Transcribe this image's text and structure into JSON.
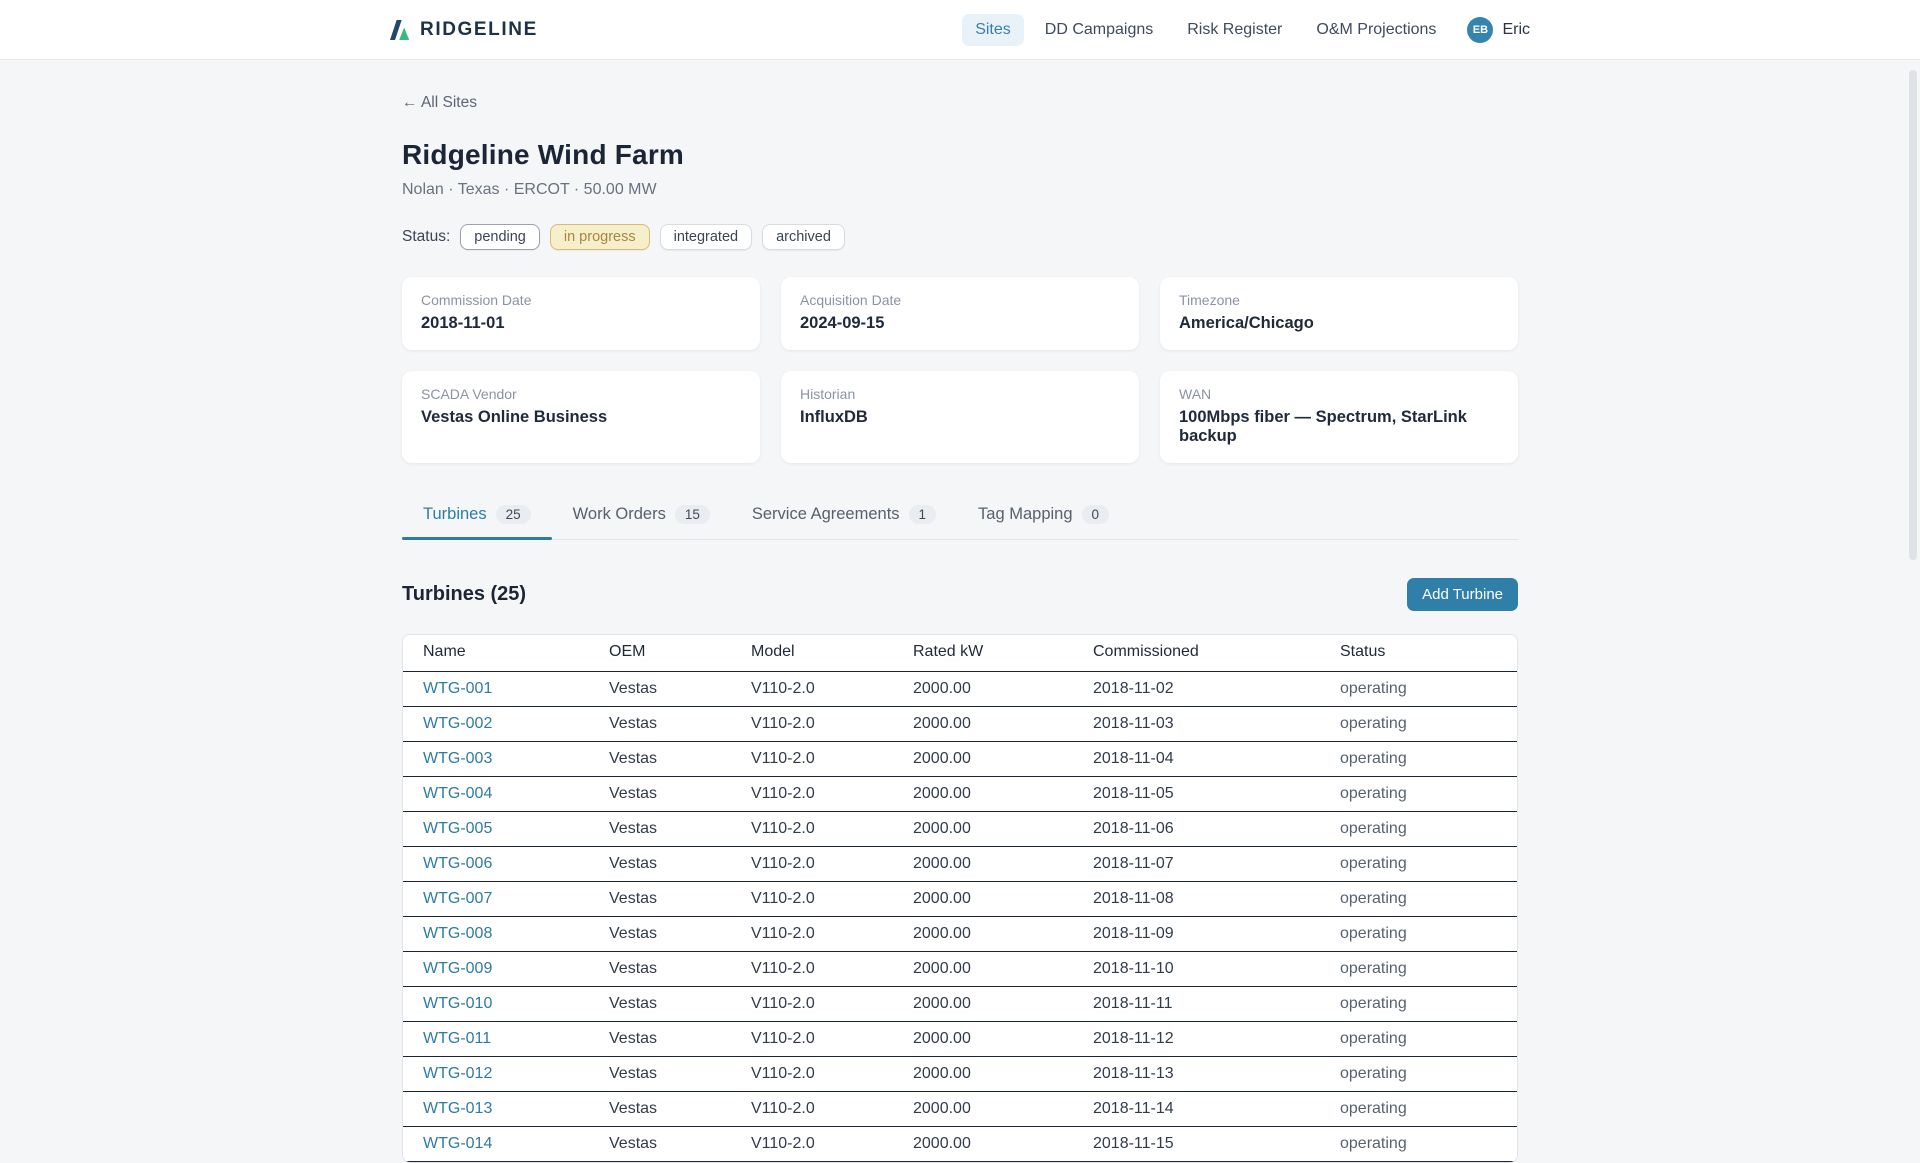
{
  "colors": {
    "accent": "#2f7fa8",
    "brand_navy": "#1e3147",
    "brand_green": "#3cb87a",
    "selected_status_bg": "#f7eecb",
    "selected_status_text": "#a5873e",
    "link": "#2d7ba4"
  },
  "brand": {
    "name": "RIDGELINE"
  },
  "nav": {
    "items": [
      {
        "label": "Sites",
        "active": true
      },
      {
        "label": "DD Campaigns",
        "active": false
      },
      {
        "label": "Risk Register",
        "active": false
      },
      {
        "label": "O&M Projections",
        "active": false
      }
    ],
    "user": {
      "initials": "EB",
      "name": "Eric"
    }
  },
  "page": {
    "back_link": "← All Sites",
    "title": "Ridgeline Wind Farm",
    "subtitle": "Nolan · Texas · ERCOT · 50.00 MW",
    "status": {
      "label": "Status:",
      "options": [
        {
          "label": "pending",
          "selected": false
        },
        {
          "label": "in progress",
          "selected": true
        },
        {
          "label": "integrated",
          "selected": false
        },
        {
          "label": "archived",
          "selected": false
        }
      ]
    },
    "info_cards": [
      {
        "label": "Commission Date",
        "value": "2018-11-01"
      },
      {
        "label": "Acquisition Date",
        "value": "2024-09-15"
      },
      {
        "label": "Timezone",
        "value": "America/Chicago"
      },
      {
        "label": "SCADA Vendor",
        "value": "Vestas Online Business"
      },
      {
        "label": "Historian",
        "value": "InfluxDB"
      },
      {
        "label": "WAN",
        "value": "100Mbps fiber — Spectrum, StarLink backup"
      }
    ],
    "tabs": [
      {
        "label": "Turbines",
        "count": "25",
        "active": true
      },
      {
        "label": "Work Orders",
        "count": "15",
        "active": false
      },
      {
        "label": "Service Agreements",
        "count": "1",
        "active": false
      },
      {
        "label": "Tag Mapping",
        "count": "0",
        "active": false
      }
    ],
    "section": {
      "title": "Turbines (25)",
      "add_button": "Add Turbine"
    },
    "table": {
      "columns": [
        "Name",
        "OEM",
        "Model",
        "Rated kW",
        "Commissioned",
        "Status"
      ],
      "rows": [
        {
          "name": "WTG-001",
          "oem": "Vestas",
          "model": "V110-2.0",
          "rated_kw": "2000.00",
          "commissioned": "2018-11-02",
          "status": "operating"
        },
        {
          "name": "WTG-002",
          "oem": "Vestas",
          "model": "V110-2.0",
          "rated_kw": "2000.00",
          "commissioned": "2018-11-03",
          "status": "operating"
        },
        {
          "name": "WTG-003",
          "oem": "Vestas",
          "model": "V110-2.0",
          "rated_kw": "2000.00",
          "commissioned": "2018-11-04",
          "status": "operating"
        },
        {
          "name": "WTG-004",
          "oem": "Vestas",
          "model": "V110-2.0",
          "rated_kw": "2000.00",
          "commissioned": "2018-11-05",
          "status": "operating"
        },
        {
          "name": "WTG-005",
          "oem": "Vestas",
          "model": "V110-2.0",
          "rated_kw": "2000.00",
          "commissioned": "2018-11-06",
          "status": "operating"
        },
        {
          "name": "WTG-006",
          "oem": "Vestas",
          "model": "V110-2.0",
          "rated_kw": "2000.00",
          "commissioned": "2018-11-07",
          "status": "operating"
        },
        {
          "name": "WTG-007",
          "oem": "Vestas",
          "model": "V110-2.0",
          "rated_kw": "2000.00",
          "commissioned": "2018-11-08",
          "status": "operating"
        },
        {
          "name": "WTG-008",
          "oem": "Vestas",
          "model": "V110-2.0",
          "rated_kw": "2000.00",
          "commissioned": "2018-11-09",
          "status": "operating"
        },
        {
          "name": "WTG-009",
          "oem": "Vestas",
          "model": "V110-2.0",
          "rated_kw": "2000.00",
          "commissioned": "2018-11-10",
          "status": "operating"
        },
        {
          "name": "WTG-010",
          "oem": "Vestas",
          "model": "V110-2.0",
          "rated_kw": "2000.00",
          "commissioned": "2018-11-11",
          "status": "operating"
        },
        {
          "name": "WTG-011",
          "oem": "Vestas",
          "model": "V110-2.0",
          "rated_kw": "2000.00",
          "commissioned": "2018-11-12",
          "status": "operating"
        },
        {
          "name": "WTG-012",
          "oem": "Vestas",
          "model": "V110-2.0",
          "rated_kw": "2000.00",
          "commissioned": "2018-11-13",
          "status": "operating"
        },
        {
          "name": "WTG-013",
          "oem": "Vestas",
          "model": "V110-2.0",
          "rated_kw": "2000.00",
          "commissioned": "2018-11-14",
          "status": "operating"
        },
        {
          "name": "WTG-014",
          "oem": "Vestas",
          "model": "V110-2.0",
          "rated_kw": "2000.00",
          "commissioned": "2018-11-15",
          "status": "operating"
        }
      ]
    }
  }
}
